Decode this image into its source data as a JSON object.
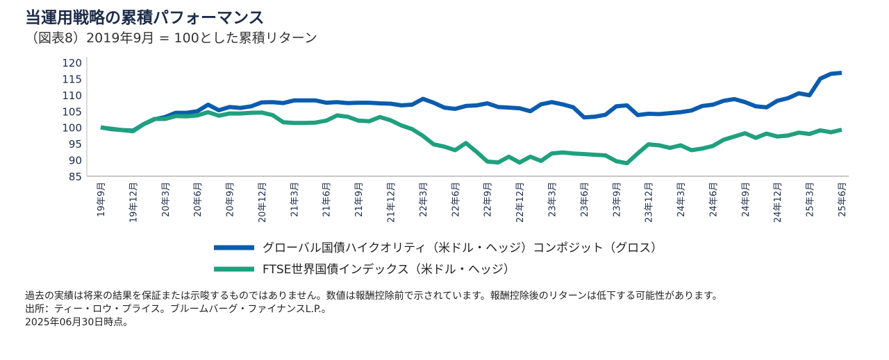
{
  "title": "当運用戦略の累積パフォーマンス",
  "subtitle": "（図表8）2019年9月 = 100とした累積リターン",
  "chart_data": {
    "type": "line",
    "title": "当運用戦略の累積パフォーマンス",
    "subtitle": "（図表8）2019年9月 = 100とした累積リターン",
    "xlabel": "",
    "ylabel": "",
    "ylim": [
      85,
      120
    ],
    "yticks": [
      85,
      90,
      95,
      100,
      105,
      110,
      115,
      120
    ],
    "x_start": "2019-09",
    "x_end": "2025-06",
    "frequency": "monthly",
    "xtick_labels": [
      "19年9月",
      "19年12月",
      "20年3月",
      "20年6月",
      "20年9月",
      "20年12月",
      "21年3月",
      "21年6月",
      "21年9月",
      "21年12月",
      "22年3月",
      "22年6月",
      "22年9月",
      "22年12月",
      "23年3月",
      "23年6月",
      "23年9月",
      "23年12月",
      "24年3月",
      "24年6月",
      "24年9月",
      "24年12月",
      "25年3月",
      "25年6月"
    ],
    "grid": false,
    "legend_position": "bottom",
    "series": [
      {
        "name": "グローバル国債ハイクオリティ（米ドル・ヘッジ）コンポジット（グロス）",
        "color": "#0b5cad",
        "values": [
          100,
          99.5,
          99.2,
          99.0,
          101.0,
          102.5,
          103.2,
          104.5,
          104.5,
          105.0,
          107.0,
          105.3,
          106.3,
          106.0,
          106.5,
          107.7,
          107.8,
          107.5,
          108.3,
          108.3,
          108.3,
          107.6,
          107.8,
          107.5,
          107.6,
          107.6,
          107.4,
          107.3,
          106.8,
          107.0,
          108.8,
          107.6,
          106.1,
          105.7,
          106.6,
          106.8,
          107.4,
          106.3,
          106.1,
          105.9,
          105.0,
          107.1,
          107.8,
          107.1,
          106.2,
          103.1,
          103.3,
          103.9,
          106.5,
          106.8,
          103.8,
          104.2,
          104.1,
          104.4,
          104.7,
          105.2,
          106.6,
          107.0,
          108.2,
          108.7,
          107.8,
          106.5,
          106.2,
          108.2,
          109.0,
          110.5,
          109.9,
          115.0,
          116.5,
          116.8
        ]
      },
      {
        "name": "FTSE世界国債インデックス（米ドル・ヘッジ）",
        "color": "#1fa07e",
        "values": [
          100,
          99.6,
          99.2,
          98.8,
          101.0,
          102.6,
          102.6,
          103.5,
          103.4,
          103.7,
          104.7,
          103.6,
          104.3,
          104.3,
          104.5,
          104.6,
          103.8,
          101.6,
          101.4,
          101.4,
          101.5,
          102.1,
          103.7,
          103.3,
          102.1,
          101.9,
          103.2,
          102.2,
          100.6,
          99.5,
          97.4,
          94.8,
          94.1,
          93.0,
          95.2,
          92.5,
          89.5,
          89.2,
          91.0,
          89.2,
          91.0,
          89.7,
          92.0,
          92.3,
          92.0,
          91.8,
          91.6,
          91.4,
          89.6,
          89.0,
          92.0,
          94.8,
          94.5,
          93.7,
          94.5,
          93.0,
          93.5,
          94.3,
          96.2,
          97.2,
          98.2,
          96.8,
          98.1,
          97.2,
          97.5,
          98.4,
          98.0,
          99.1,
          98.5,
          99.3
        ]
      }
    ]
  },
  "notes": {
    "disclaimer": "過去の実績は将来の結果を保証または示唆するものではありません。数値は報酬控除前で示されています。報酬控除後のリターンは低下する可能性があります。",
    "source": "出所：ティー・ロウ・プライス。ブルームバーグ・ファイナンスL.P.。",
    "as_of": "2025年06月30日時点。"
  }
}
